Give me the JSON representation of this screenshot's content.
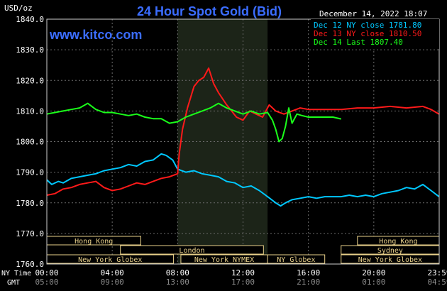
{
  "header": {
    "title": "24 Hour Spot Gold (Bid)",
    "unit": "USD/oz",
    "date": "December 14, 2022 18:07",
    "site": "www.kitco.com"
  },
  "legend": [
    {
      "label": "Dec 12 NY close 1781.80",
      "color": "#00c8ff"
    },
    {
      "label": "Dec 13 NY close 1810.50",
      "color": "#ff1a1a"
    },
    {
      "label": "Dec 14 Last 1807.40",
      "color": "#1aff1a"
    }
  ],
  "axis": {
    "x_label_top": "NY Time",
    "x_label_bottom": "GMT",
    "ny_ticks": [
      "00:00",
      "04:00",
      "08:00",
      "12:00",
      "16:00",
      "20:00",
      "23:59"
    ],
    "gmt_ticks": [
      "05:00",
      "09:00",
      "13:00",
      "17:00",
      "21:00",
      "01:00",
      "04:59"
    ]
  },
  "sessions": [
    {
      "label": "Hong Kong",
      "start": 0,
      "end": 5.75,
      "row": 0
    },
    {
      "label": "London",
      "start": 4.5,
      "end": 13.25,
      "row": 1
    },
    {
      "label": "New York Globex",
      "start": 0,
      "end": 7.75,
      "row": 2
    },
    {
      "label": "New York NYMEX",
      "start": 8.2,
      "end": 13.5,
      "row": 2
    },
    {
      "label": "NY Globex",
      "start": 13.5,
      "end": 17.0,
      "row": 2
    },
    {
      "label": "Hong Kong",
      "start": 19.0,
      "end": 24.0,
      "row": 0
    },
    {
      "label": "Sydney",
      "start": 18.0,
      "end": 24.0,
      "row": 1
    },
    {
      "label": "New York Globex",
      "start": 18.0,
      "end": 24.0,
      "row": 2
    }
  ],
  "chart_data": {
    "type": "line",
    "title": "24 Hour Spot Gold (Bid)",
    "ylabel": "USD/oz",
    "ylim": [
      1760,
      1840
    ],
    "xlim": [
      0,
      24
    ],
    "x_unit": "NY time hours",
    "yticks": [
      1760,
      1770,
      1780,
      1790,
      1800,
      1810,
      1820,
      1830,
      1840
    ],
    "grid": true,
    "shaded_region": [
      8,
      13.5
    ],
    "series": [
      {
        "name": "Dec 12 NY close 1781.80",
        "color": "#00c8ff",
        "x": [
          0,
          0.3,
          0.7,
          1,
          1.5,
          2,
          2.5,
          3,
          3.5,
          4,
          4.5,
          5,
          5.5,
          6,
          6.5,
          7,
          7.3,
          7.7,
          8,
          8.5,
          9,
          9.5,
          10,
          10.5,
          11,
          11.5,
          12,
          12.5,
          13,
          13.5,
          14,
          14.3,
          14.6,
          15,
          15.5,
          16,
          16.5,
          17,
          17.5,
          18,
          18.5,
          19,
          19.5,
          20,
          20.5,
          21,
          21.5,
          22,
          22.5,
          23,
          23.5,
          23.99
        ],
        "y": [
          1787.5,
          1786,
          1787,
          1786.5,
          1788,
          1788.5,
          1789,
          1789.5,
          1790.5,
          1791,
          1791.5,
          1792.5,
          1792,
          1793.5,
          1794,
          1796,
          1795.5,
          1794,
          1791,
          1790,
          1790.5,
          1789.5,
          1789,
          1788.5,
          1787,
          1786.5,
          1785,
          1785.5,
          1784,
          1782,
          1780,
          1779,
          1780,
          1781,
          1781.5,
          1782,
          1781.5,
          1782,
          1782,
          1782,
          1782.5,
          1782,
          1782.5,
          1782,
          1783,
          1783.5,
          1784,
          1785,
          1784.5,
          1786,
          1784,
          1782
        ]
      },
      {
        "name": "Dec 13 NY close 1810.50",
        "color": "#ff1a1a",
        "x": [
          0,
          0.5,
          1,
          1.5,
          2,
          2.5,
          3,
          3.5,
          4,
          4.5,
          5,
          5.5,
          6,
          6.5,
          7,
          7.5,
          8,
          8.1,
          8.3,
          8.6,
          9,
          9.3,
          9.6,
          9.9,
          10.2,
          10.5,
          11,
          11.3,
          11.6,
          12,
          12.4,
          12.8,
          13.2,
          13.6,
          14,
          14.5,
          15,
          15.5,
          16,
          17,
          18,
          19,
          20,
          21,
          22,
          23,
          23.5,
          23.99
        ],
        "y": [
          1782.5,
          1783,
          1784.5,
          1785,
          1786,
          1786.5,
          1787,
          1785,
          1784,
          1784.5,
          1785.5,
          1786.5,
          1786,
          1787,
          1788,
          1788.5,
          1789.5,
          1796,
          1804,
          1811,
          1818,
          1820,
          1821,
          1824,
          1819,
          1816,
          1812,
          1810,
          1808,
          1807,
          1810,
          1809,
          1808,
          1812,
          1810,
          1809,
          1810,
          1811,
          1810.5,
          1810.5,
          1810.5,
          1811,
          1811,
          1811.5,
          1811,
          1811.5,
          1810.5,
          1809
        ]
      },
      {
        "name": "Dec 14 Last 1807.40",
        "color": "#1aff1a",
        "x": [
          0,
          0.5,
          1,
          1.5,
          2,
          2.5,
          3,
          3.5,
          4,
          4.5,
          5,
          5.5,
          6,
          6.5,
          7,
          7.5,
          8,
          8.5,
          9,
          9.5,
          10,
          10.5,
          11,
          11.5,
          12,
          12.5,
          13,
          13.5,
          13.8,
          14,
          14.2,
          14.4,
          14.6,
          14.8,
          15,
          15.3,
          15.6,
          16,
          16.5,
          17,
          17.5,
          18
        ],
        "y": [
          1809,
          1809.5,
          1810,
          1810.5,
          1811,
          1812.5,
          1810.5,
          1809.5,
          1809.5,
          1809,
          1808.5,
          1809,
          1808,
          1807.5,
          1807.5,
          1806,
          1806.5,
          1808,
          1809,
          1810,
          1811,
          1812.5,
          1811,
          1810,
          1809,
          1810,
          1809,
          1809.5,
          1807,
          1804,
          1800,
          1801,
          1805,
          1811,
          1806,
          1809,
          1808.5,
          1808,
          1808,
          1808,
          1808,
          1807.4
        ]
      }
    ]
  }
}
